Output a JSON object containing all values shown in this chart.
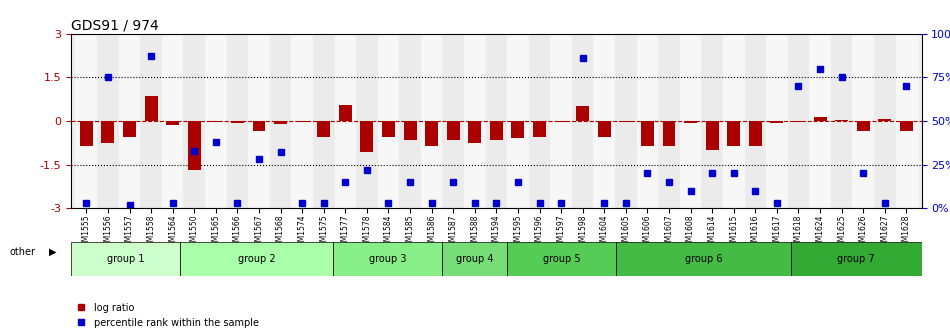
{
  "title": "GDS91 / 974",
  "samples": [
    "GSM1555",
    "GSM1556",
    "GSM1557",
    "GSM1558",
    "GSM1564",
    "GSM1550",
    "GSM1565",
    "GSM1566",
    "GSM1567",
    "GSM1568",
    "GSM1574",
    "GSM1575",
    "GSM1577",
    "GSM1578",
    "GSM1584",
    "GSM1585",
    "GSM1586",
    "GSM1587",
    "GSM1588",
    "GSM1594",
    "GSM1595",
    "GSM1596",
    "GSM1597",
    "GSM1598",
    "GSM1604",
    "GSM1605",
    "GSM1606",
    "GSM1607",
    "GSM1608",
    "GSM1614",
    "GSM1615",
    "GSM1616",
    "GSM1617",
    "GSM1618",
    "GSM1624",
    "GSM1625",
    "GSM1626",
    "GSM1627",
    "GSM1628"
  ],
  "log_ratio": [
    -0.85,
    -0.75,
    -0.55,
    0.85,
    -0.15,
    -1.7,
    -0.05,
    -0.08,
    -0.35,
    -0.12,
    -0.05,
    -0.55,
    0.55,
    -1.05,
    -0.55,
    -0.65,
    -0.85,
    -0.65,
    -0.75,
    -0.65,
    -0.6,
    -0.55,
    -0.05,
    0.5,
    -0.55,
    -0.05,
    -0.85,
    -0.85,
    -0.08,
    -1.0,
    -0.85,
    -0.85,
    -0.08,
    -0.05,
    0.15,
    0.05,
    -0.35,
    0.08,
    -0.35
  ],
  "percentile": [
    3,
    75,
    2,
    87,
    3,
    33,
    38,
    3,
    28,
    32,
    3,
    3,
    15,
    22,
    3,
    15,
    3,
    15,
    3,
    3,
    15,
    3,
    3,
    86,
    3,
    3,
    20,
    15,
    10,
    20,
    20,
    10,
    3,
    70,
    80,
    75,
    20,
    3,
    70
  ],
  "groups": [
    {
      "name": "group 1",
      "start": 0,
      "end": 5,
      "color": "#ccffcc"
    },
    {
      "name": "group 2",
      "start": 5,
      "end": 12,
      "color": "#aaffaa"
    },
    {
      "name": "group 3",
      "start": 12,
      "end": 17,
      "color": "#88ee88"
    },
    {
      "name": "group 4",
      "start": 17,
      "end": 20,
      "color": "#77dd77"
    },
    {
      "name": "group 5",
      "start": 20,
      "end": 25,
      "color": "#55cc55"
    },
    {
      "name": "group 6",
      "start": 25,
      "end": 33,
      "color": "#44bb44"
    },
    {
      "name": "group 7",
      "start": 33,
      "end": 39,
      "color": "#33aa33"
    }
  ],
  "bar_color": "#aa0000",
  "dot_color": "#0000cc",
  "ylim": [
    -3,
    3
  ],
  "y2lim": [
    0,
    100
  ],
  "yticks": [
    -3,
    -1.5,
    0,
    1.5,
    3
  ],
  "y2ticks": [
    0,
    25,
    50,
    75,
    100
  ],
  "hline_y": [
    -1.5,
    0,
    1.5
  ],
  "bg_color": "#ffffff"
}
